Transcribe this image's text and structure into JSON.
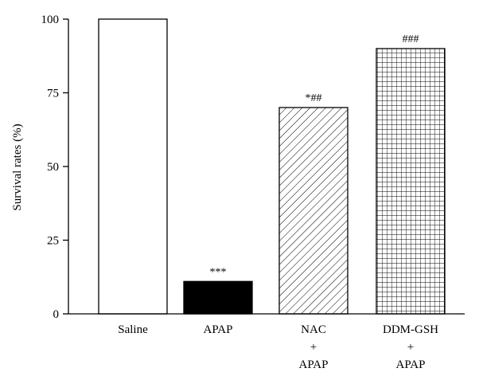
{
  "chart_data": {
    "type": "bar",
    "title": "",
    "xlabel": "",
    "ylabel": "Survival rates (%)",
    "ylim": [
      0,
      100
    ],
    "yticks": [
      0,
      25,
      50,
      75,
      100
    ],
    "grid": false,
    "categories": [
      [
        "Saline"
      ],
      [
        "APAP"
      ],
      [
        "NAC",
        "+",
        "APAP"
      ],
      [
        "DDM-GSH",
        "+",
        "APAP"
      ]
    ],
    "values": [
      100,
      11,
      70,
      90
    ],
    "annotations": [
      "",
      "***",
      "*##",
      "###"
    ],
    "fills": [
      "white",
      "black",
      "diagonal-hatch",
      "crosshatch-grid"
    ],
    "colors": {
      "stroke": "#000000",
      "background": "#ffffff",
      "solid": "#000000"
    }
  }
}
